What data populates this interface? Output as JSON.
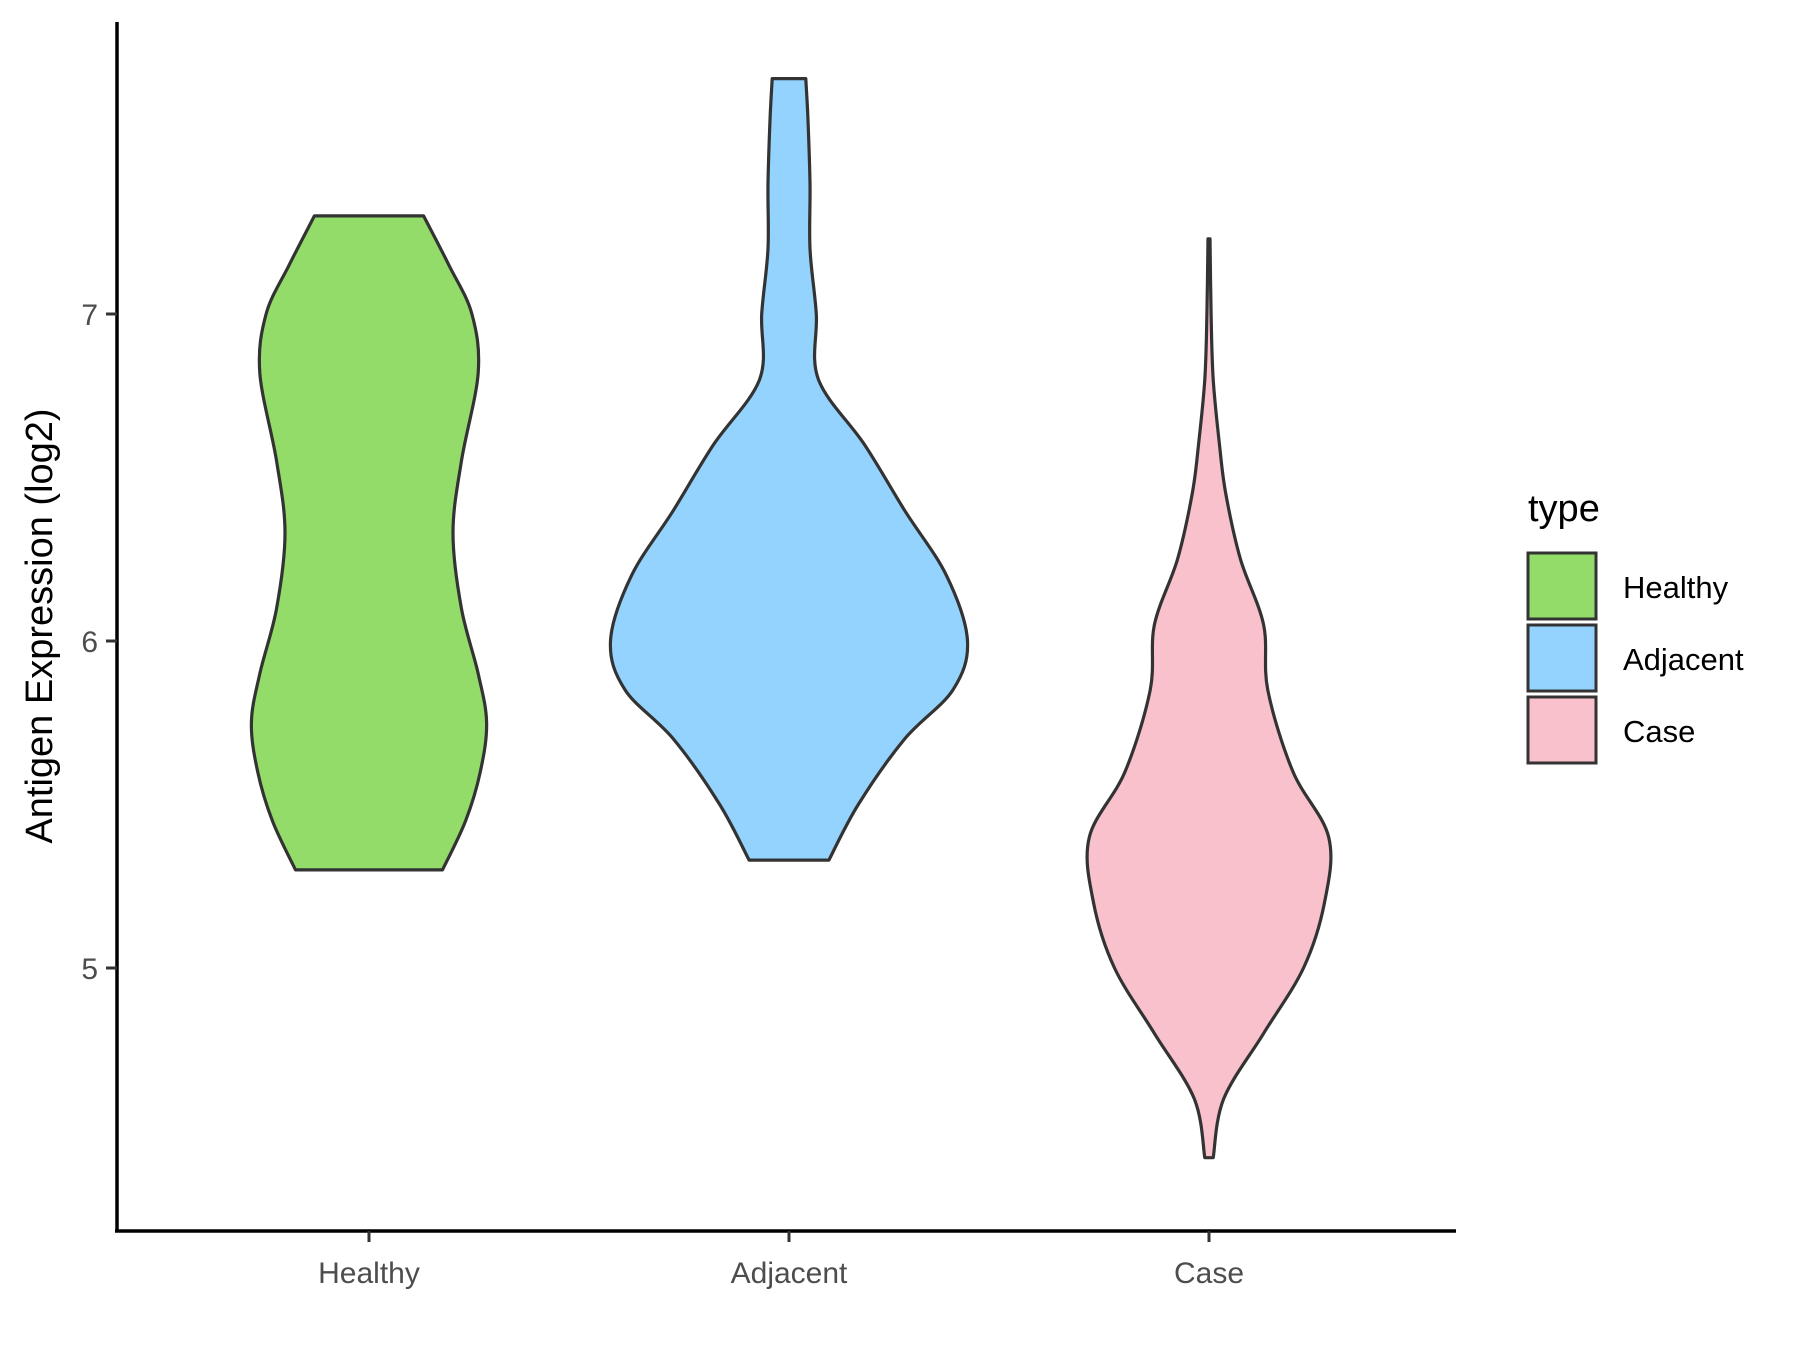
{
  "chart_data": {
    "type": "violin",
    "title": "",
    "xlabel": "",
    "ylabel": "Antigen Expression (log2)",
    "ylim": [
      4.3,
      7.9
    ],
    "yticks": [
      5,
      6,
      7
    ],
    "categories": [
      "Healthy",
      "Adjacent",
      "Case"
    ],
    "legend": {
      "title": "type",
      "position": "right"
    },
    "grid": false,
    "series": [
      {
        "name": "Healthy",
        "color": "#93dc6a",
        "min": 5.3,
        "max": 7.3,
        "profile": [
          [
            5.3,
            0.35
          ],
          [
            5.45,
            0.46
          ],
          [
            5.6,
            0.53
          ],
          [
            5.75,
            0.56
          ],
          [
            5.9,
            0.52
          ],
          [
            6.1,
            0.44
          ],
          [
            6.33,
            0.4
          ],
          [
            6.55,
            0.44
          ],
          [
            6.82,
            0.52
          ],
          [
            7.0,
            0.49
          ],
          [
            7.15,
            0.38
          ],
          [
            7.3,
            0.26
          ]
        ]
      },
      {
        "name": "Adjacent",
        "color": "#93d3fe",
        "min": 5.33,
        "max": 7.72,
        "profile": [
          [
            5.33,
            0.19
          ],
          [
            5.5,
            0.33
          ],
          [
            5.7,
            0.55
          ],
          [
            5.85,
            0.78
          ],
          [
            6.0,
            0.85
          ],
          [
            6.2,
            0.75
          ],
          [
            6.4,
            0.55
          ],
          [
            6.6,
            0.36
          ],
          [
            6.8,
            0.14
          ],
          [
            7.0,
            0.13
          ],
          [
            7.2,
            0.1
          ],
          [
            7.4,
            0.1
          ],
          [
            7.6,
            0.09
          ],
          [
            7.72,
            0.08
          ]
        ]
      },
      {
        "name": "Case",
        "color": "#f8c1cb",
        "min": 4.42,
        "max": 7.23,
        "profile": [
          [
            4.42,
            0.02
          ],
          [
            4.6,
            0.07
          ],
          [
            4.8,
            0.26
          ],
          [
            5.0,
            0.45
          ],
          [
            5.2,
            0.55
          ],
          [
            5.4,
            0.57
          ],
          [
            5.6,
            0.4
          ],
          [
            5.85,
            0.28
          ],
          [
            6.05,
            0.26
          ],
          [
            6.25,
            0.15
          ],
          [
            6.45,
            0.08
          ],
          [
            6.6,
            0.05
          ],
          [
            6.8,
            0.02
          ],
          [
            7.0,
            0.01
          ],
          [
            7.23,
            0.005
          ]
        ]
      }
    ]
  }
}
